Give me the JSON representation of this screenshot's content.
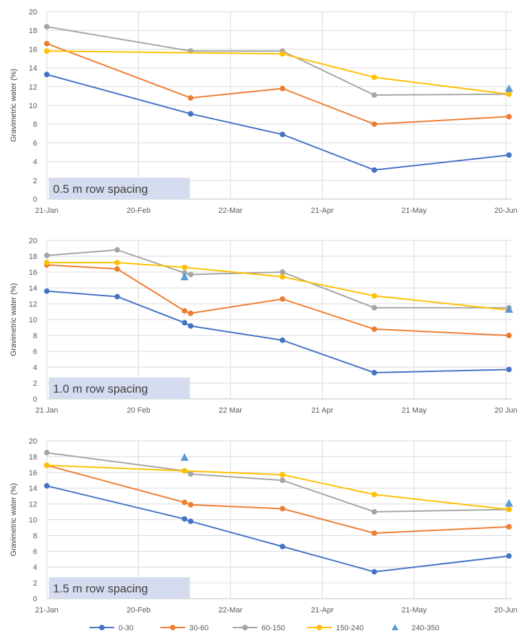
{
  "series_colors": {
    "0-30": "#4472c4",
    "30-60": "#ed7d31",
    "60-150": "#a5a5a5",
    "150-240": "#ffc000",
    "240-350": "#5b9bd5"
  },
  "legend": [
    {
      "name": "0-30",
      "marker": "circle"
    },
    {
      "name": "30-60",
      "marker": "circle"
    },
    {
      "name": "60-150",
      "marker": "circle"
    },
    {
      "name": "150-240",
      "marker": "circle"
    },
    {
      "name": "240-350",
      "marker": "triangle"
    }
  ],
  "chart_data": [
    {
      "type": "line",
      "panel_label": "0.5 m row spacing",
      "ylabel": "Gravimetric water (%)",
      "ylim": [
        0,
        20
      ],
      "yticks": [
        0,
        2,
        4,
        6,
        8,
        10,
        12,
        14,
        16,
        18,
        20
      ],
      "xlim": [
        "2021-01-21",
        "2021-06-22"
      ],
      "xticks": [
        {
          "date": "2021-01-21",
          "label": "21-Jan"
        },
        {
          "date": "2021-02-20",
          "label": "20-Feb"
        },
        {
          "date": "2021-03-22",
          "label": "22-Mar"
        },
        {
          "date": "2021-04-21",
          "label": "21-Apr"
        },
        {
          "date": "2021-05-21",
          "label": "21-May"
        },
        {
          "date": "2021-06-20",
          "label": "20-Jun"
        }
      ],
      "grid": true,
      "series": [
        {
          "name": "0-30",
          "points": [
            [
              "2021-01-21",
              13.3
            ],
            [
              "2021-03-09",
              9.1
            ],
            [
              "2021-04-08",
              6.9
            ],
            [
              "2021-05-08",
              3.1
            ],
            [
              "2021-06-21",
              4.7
            ]
          ]
        },
        {
          "name": "30-60",
          "points": [
            [
              "2021-01-21",
              16.6
            ],
            [
              "2021-03-09",
              10.8
            ],
            [
              "2021-04-08",
              11.8
            ],
            [
              "2021-05-08",
              8.0
            ],
            [
              "2021-06-21",
              8.8
            ]
          ]
        },
        {
          "name": "60-150",
          "points": [
            [
              "2021-01-21",
              18.4
            ],
            [
              "2021-03-09",
              15.8
            ],
            [
              "2021-04-08",
              15.8
            ],
            [
              "2021-05-08",
              11.1
            ],
            [
              "2021-06-21",
              11.2
            ]
          ]
        },
        {
          "name": "150-240",
          "points": [
            [
              "2021-01-21",
              15.8
            ],
            [
              "2021-04-08",
              15.5
            ],
            [
              "2021-05-08",
              13.0
            ],
            [
              "2021-06-21",
              11.2
            ]
          ]
        },
        {
          "name": "240-350",
          "points": [
            [
              "2021-06-21",
              11.8
            ]
          ]
        }
      ]
    },
    {
      "type": "line",
      "panel_label": "1.0 m row spacing",
      "ylabel": "Gravimetric water (%)",
      "ylim": [
        0,
        20
      ],
      "yticks": [
        0,
        2,
        4,
        6,
        8,
        10,
        12,
        14,
        16,
        18,
        20
      ],
      "xlim": [
        "2021-01-21",
        "2021-06-22"
      ],
      "xticks": [
        {
          "date": "2021-01-21",
          "label": "21 Jan"
        },
        {
          "date": "2021-02-20",
          "label": "20 Feb"
        },
        {
          "date": "2021-03-22",
          "label": "22 Mar"
        },
        {
          "date": "2021-04-21",
          "label": "21 Apr"
        },
        {
          "date": "2021-05-21",
          "label": "21 May"
        },
        {
          "date": "2021-06-20",
          "label": "20 Jun"
        }
      ],
      "grid": true,
      "series": [
        {
          "name": "0-30",
          "points": [
            [
              "2021-01-21",
              13.6
            ],
            [
              "2021-02-13",
              12.9
            ],
            [
              "2021-03-07",
              9.6
            ],
            [
              "2021-03-09",
              9.2
            ],
            [
              "2021-04-08",
              7.4
            ],
            [
              "2021-05-08",
              3.3
            ],
            [
              "2021-06-21",
              3.7
            ]
          ]
        },
        {
          "name": "30-60",
          "points": [
            [
              "2021-01-21",
              16.9
            ],
            [
              "2021-02-13",
              16.4
            ],
            [
              "2021-03-07",
              11.1
            ],
            [
              "2021-03-09",
              10.8
            ],
            [
              "2021-04-08",
              12.6
            ],
            [
              "2021-05-08",
              8.8
            ],
            [
              "2021-06-21",
              8.0
            ]
          ]
        },
        {
          "name": "60-150",
          "points": [
            [
              "2021-01-21",
              18.1
            ],
            [
              "2021-02-13",
              18.8
            ],
            [
              "2021-03-07",
              15.9
            ],
            [
              "2021-03-09",
              15.7
            ],
            [
              "2021-04-08",
              16.0
            ],
            [
              "2021-05-08",
              11.5
            ],
            [
              "2021-06-21",
              11.5
            ]
          ]
        },
        {
          "name": "150-240",
          "points": [
            [
              "2021-01-21",
              17.2
            ],
            [
              "2021-02-13",
              17.2
            ],
            [
              "2021-03-07",
              16.6
            ],
            [
              "2021-04-08",
              15.4
            ],
            [
              "2021-05-08",
              13.0
            ],
            [
              "2021-06-21",
              11.2
            ]
          ]
        },
        {
          "name": "240-350",
          "points": [
            [
              "2021-03-07",
              15.4
            ],
            [
              "2021-06-21",
              11.3
            ]
          ]
        }
      ]
    },
    {
      "type": "line",
      "panel_label": "1.5 m row spacing",
      "ylabel": "Gravimetric water (%)",
      "ylim": [
        0,
        20
      ],
      "yticks": [
        0,
        2,
        4,
        6,
        8,
        10,
        12,
        14,
        16,
        18,
        20
      ],
      "xlim": [
        "2021-01-21",
        "2021-06-22"
      ],
      "xticks": [
        {
          "date": "2021-01-21",
          "label": "21-Jan"
        },
        {
          "date": "2021-02-20",
          "label": "20-Feb"
        },
        {
          "date": "2021-03-22",
          "label": "22-Mar"
        },
        {
          "date": "2021-04-21",
          "label": "21-Apr"
        },
        {
          "date": "2021-05-21",
          "label": "21-May"
        },
        {
          "date": "2021-06-20",
          "label": "20-Jun"
        }
      ],
      "grid": true,
      "series": [
        {
          "name": "0-30",
          "points": [
            [
              "2021-01-21",
              14.3
            ],
            [
              "2021-03-07",
              10.1
            ],
            [
              "2021-03-09",
              9.8
            ],
            [
              "2021-04-08",
              6.6
            ],
            [
              "2021-05-08",
              3.4
            ],
            [
              "2021-06-21",
              5.4
            ]
          ]
        },
        {
          "name": "30-60",
          "points": [
            [
              "2021-01-21",
              16.9
            ],
            [
              "2021-03-07",
              12.2
            ],
            [
              "2021-03-09",
              11.9
            ],
            [
              "2021-04-08",
              11.4
            ],
            [
              "2021-05-08",
              8.3
            ],
            [
              "2021-06-21",
              9.1
            ]
          ]
        },
        {
          "name": "60-150",
          "points": [
            [
              "2021-01-21",
              18.5
            ],
            [
              "2021-03-07",
              16.2
            ],
            [
              "2021-03-09",
              15.8
            ],
            [
              "2021-04-08",
              15.0
            ],
            [
              "2021-05-08",
              11.0
            ],
            [
              "2021-06-21",
              11.3
            ]
          ]
        },
        {
          "name": "150-240",
          "points": [
            [
              "2021-01-21",
              16.9
            ],
            [
              "2021-03-07",
              16.2
            ],
            [
              "2021-04-08",
              15.7
            ],
            [
              "2021-05-08",
              13.2
            ],
            [
              "2021-06-21",
              11.3
            ]
          ]
        },
        {
          "name": "240-350",
          "points": [
            [
              "2021-03-07",
              17.9
            ],
            [
              "2021-06-21",
              12.1
            ]
          ]
        }
      ]
    }
  ]
}
